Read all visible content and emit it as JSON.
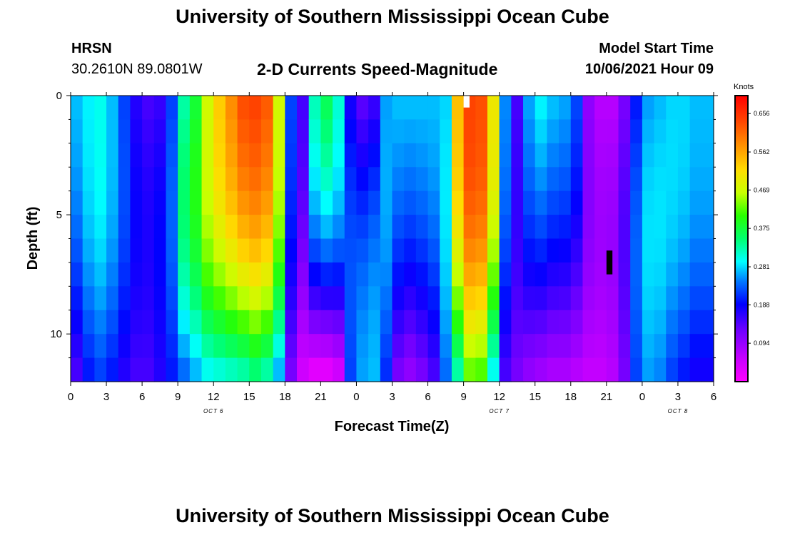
{
  "header": {
    "title_top": "University of Southern Mississippi Ocean Cube",
    "title_bottom": "University of Southern Mississippi Ocean Cube",
    "station": "HRSN",
    "coordinates": "30.2610N  89.0801W",
    "subtitle": "2-D Currents Speed-Magnitude",
    "model_label": "Model Start Time",
    "model_time": "10/06/2021 Hour 09"
  },
  "chart_data": {
    "type": "heatmap",
    "title": "2-D Currents Speed-Magnitude",
    "xlabel": "Forecast Time(Z)",
    "ylabel": "Depth (ft)",
    "x_range": [
      0,
      54
    ],
    "x_units": "hours since 10/06 00Z",
    "x_ticks": [
      0,
      3,
      6,
      9,
      12,
      15,
      18,
      21,
      24,
      27,
      30,
      33,
      36,
      39,
      42,
      45,
      48,
      51,
      54
    ],
    "x_tick_labels": [
      "0",
      "3",
      "6",
      "9",
      "12",
      "15",
      "18",
      "21",
      "0",
      "3",
      "6",
      "9",
      "12",
      "15",
      "18",
      "21",
      "0",
      "3",
      "6"
    ],
    "date_labels": [
      {
        "text": "OCT 6",
        "x": 12
      },
      {
        "text": "OCT 7",
        "x": 36
      },
      {
        "text": "OCT 8",
        "x": 51
      }
    ],
    "y_range": [
      0,
      12
    ],
    "y_ticks": [
      0,
      5,
      10
    ],
    "y_tick_labels": [
      "0",
      "5",
      "10"
    ],
    "y_minor_ticks": [
      1,
      2,
      3,
      4,
      6,
      7,
      8,
      9,
      11
    ],
    "colorbar": {
      "units": "Knots",
      "range": [
        0.0,
        0.7
      ],
      "ticks": [
        0.656,
        0.562,
        0.469,
        0.375,
        0.281,
        0.188,
        0.094
      ],
      "tick_labels": [
        "0.656",
        "0.562",
        "0.469",
        "0.375",
        "0.281",
        "0.188",
        "0.094"
      ]
    },
    "time_step_hours": 1,
    "depth_levels_ft": [
      0.5,
      1.5,
      2.5,
      3.5,
      4.5,
      5.5,
      6.5,
      7.5,
      8.5,
      9.5,
      10.5,
      11.5
    ],
    "column_profiles": [
      {
        "t": 0,
        "surface": 0.27,
        "bottom": 0.15
      },
      {
        "t": 1,
        "surface": 0.29,
        "bottom": 0.2
      },
      {
        "t": 2,
        "surface": 0.3,
        "bottom": 0.22
      },
      {
        "t": 3,
        "surface": 0.27,
        "bottom": 0.2
      },
      {
        "t": 4,
        "surface": 0.22,
        "bottom": 0.17
      },
      {
        "t": 5,
        "surface": 0.17,
        "bottom": 0.15
      },
      {
        "t": 6,
        "surface": 0.15,
        "bottom": 0.15
      },
      {
        "t": 7,
        "surface": 0.16,
        "bottom": 0.17
      },
      {
        "t": 8,
        "surface": 0.22,
        "bottom": 0.2
      },
      {
        "t": 9,
        "surface": 0.33,
        "bottom": 0.24
      },
      {
        "t": 10,
        "surface": 0.38,
        "bottom": 0.27
      },
      {
        "t": 11,
        "surface": 0.47,
        "bottom": 0.3
      },
      {
        "t": 12,
        "surface": 0.53,
        "bottom": 0.31
      },
      {
        "t": 13,
        "surface": 0.58,
        "bottom": 0.32
      },
      {
        "t": 14,
        "surface": 0.63,
        "bottom": 0.33
      },
      {
        "t": 15,
        "surface": 0.64,
        "bottom": 0.35
      },
      {
        "t": 16,
        "surface": 0.62,
        "bottom": 0.33
      },
      {
        "t": 17,
        "surface": 0.47,
        "bottom": 0.27
      },
      {
        "t": 18,
        "surface": 0.22,
        "bottom": 0.12
      },
      {
        "t": 19,
        "surface": 0.15,
        "bottom": 0.05
      },
      {
        "t": 20,
        "surface": 0.32,
        "bottom": 0.03
      },
      {
        "t": 21,
        "surface": 0.36,
        "bottom": 0.03
      },
      {
        "t": 22,
        "surface": 0.31,
        "bottom": 0.05
      },
      {
        "t": 23,
        "surface": 0.18,
        "bottom": 0.22
      },
      {
        "t": 24,
        "surface": 0.14,
        "bottom": 0.26
      },
      {
        "t": 25,
        "surface": 0.16,
        "bottom": 0.27
      },
      {
        "t": 26,
        "surface": 0.26,
        "bottom": 0.21
      },
      {
        "t": 27,
        "surface": 0.27,
        "bottom": 0.12
      },
      {
        "t": 28,
        "surface": 0.27,
        "bottom": 0.1
      },
      {
        "t": 29,
        "surface": 0.27,
        "bottom": 0.12
      },
      {
        "t": 30,
        "surface": 0.27,
        "bottom": 0.15
      },
      {
        "t": 31,
        "surface": 0.28,
        "bottom": 0.24
      },
      {
        "t": 32,
        "surface": 0.54,
        "bottom": 0.33
      },
      {
        "t": 33,
        "surface": 0.64,
        "bottom": 0.43
      },
      {
        "t": 34,
        "surface": 0.63,
        "bottom": 0.42
      },
      {
        "t": 35,
        "surface": 0.5,
        "bottom": 0.3
      },
      {
        "t": 36,
        "surface": 0.25,
        "bottom": 0.15
      },
      {
        "t": 37,
        "surface": 0.15,
        "bottom": 0.12
      },
      {
        "t": 38,
        "surface": 0.26,
        "bottom": 0.1
      },
      {
        "t": 39,
        "surface": 0.29,
        "bottom": 0.09
      },
      {
        "t": 40,
        "surface": 0.27,
        "bottom": 0.08
      },
      {
        "t": 41,
        "surface": 0.26,
        "bottom": 0.08
      },
      {
        "t": 42,
        "surface": 0.22,
        "bottom": 0.07
      },
      {
        "t": 43,
        "surface": 0.1,
        "bottom": 0.06
      },
      {
        "t": 44,
        "surface": 0.07,
        "bottom": 0.06
      },
      {
        "t": 45,
        "surface": 0.07,
        "bottom": 0.07
      },
      {
        "t": 46,
        "surface": 0.12,
        "bottom": 0.12
      },
      {
        "t": 47,
        "surface": 0.2,
        "bottom": 0.22
      },
      {
        "t": 48,
        "surface": 0.26,
        "bottom": 0.26
      },
      {
        "t": 49,
        "surface": 0.27,
        "bottom": 0.25
      },
      {
        "t": 50,
        "surface": 0.28,
        "bottom": 0.22
      },
      {
        "t": 51,
        "surface": 0.28,
        "bottom": 0.2
      },
      {
        "t": 52,
        "surface": 0.27,
        "bottom": 0.18
      },
      {
        "t": 53,
        "surface": 0.27,
        "bottom": 0.18
      }
    ],
    "annotations": [
      {
        "kind": "white-marker",
        "t": 33,
        "depth_ft": [
          0,
          0.5
        ]
      },
      {
        "kind": "black-marker",
        "t": 45,
        "depth_ft": [
          6.5,
          7.5
        ]
      }
    ]
  }
}
